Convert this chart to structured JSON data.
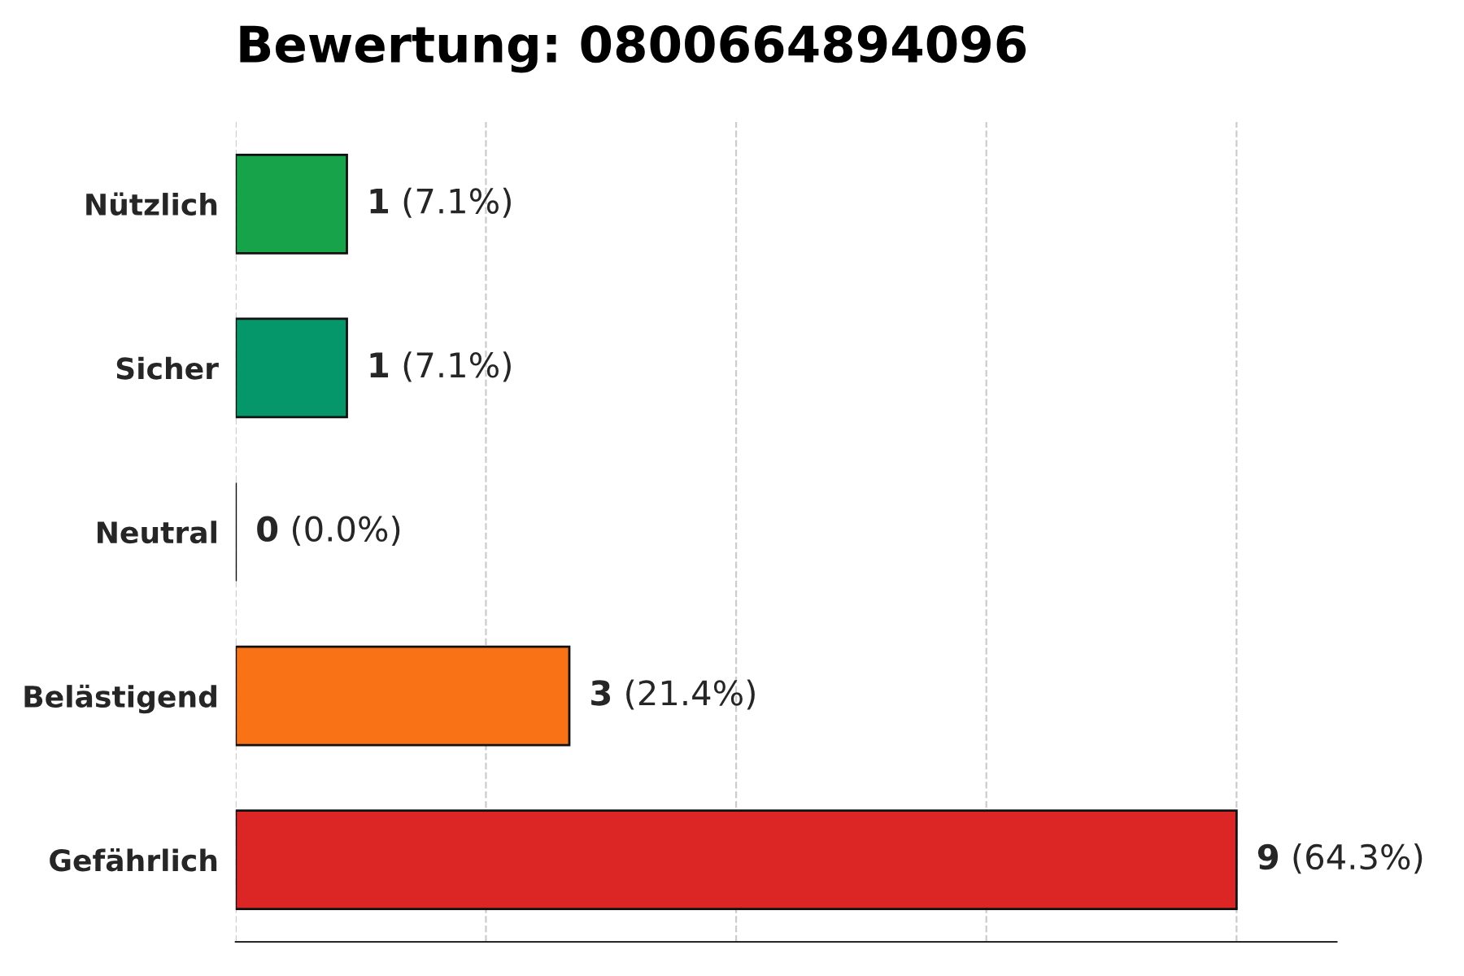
{
  "chart_data": {
    "type": "bar",
    "orientation": "horizontal",
    "title": "Bewertung: 0800664894096",
    "categories": [
      "Nützlich",
      "Sicher",
      "Neutral",
      "Belästigend",
      "Gefährlich"
    ],
    "values": [
      1,
      1,
      0,
      3,
      9
    ],
    "colors": [
      "#16a34a",
      "#059669",
      "#111111",
      "#f97316",
      "#dc2626"
    ],
    "value_labels": [
      "1 (7.1%)",
      "1 (7.1%)",
      "0 (0.0%)",
      "3 (21.4%)",
      "9 (64.3%)"
    ],
    "xlim": [
      0,
      9.9
    ],
    "xticks": [
      {
        "value": 0,
        "label": null
      },
      {
        "value": 2.25,
        "label": null
      },
      {
        "value": 4.5,
        "label": null
      },
      {
        "value": 6.75,
        "label": null
      },
      {
        "value": 9,
        "label": null
      }
    ],
    "grid": "x",
    "tick_labels": "y",
    "legend": false
  }
}
